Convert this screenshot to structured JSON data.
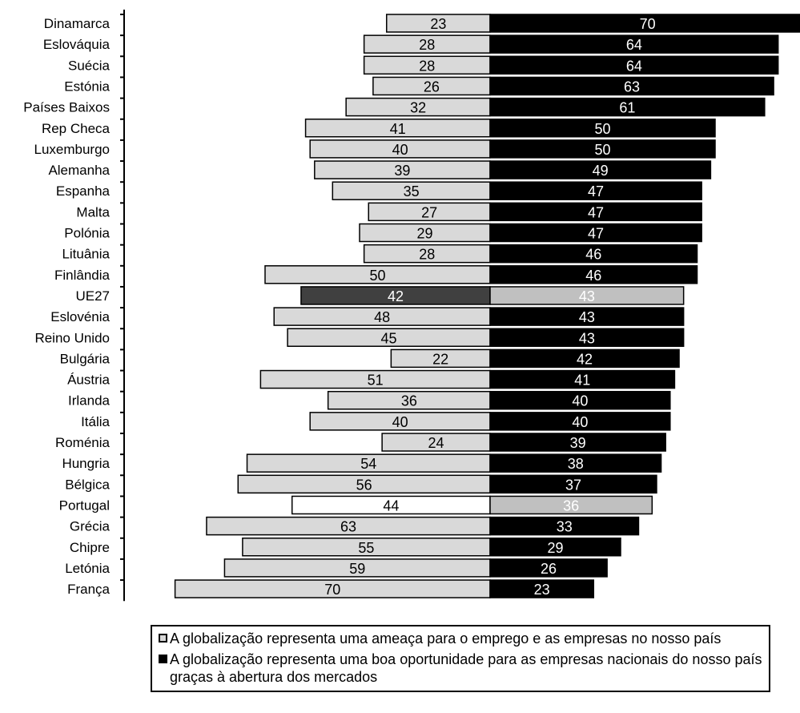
{
  "chart_data": {
    "type": "bar",
    "orientation": "diverging-horizontal",
    "categories": [
      "Dinamarca",
      "Eslováquia",
      "Suécia",
      "Estónia",
      "Países Baixos",
      "Rep Checa",
      "Luxemburgo",
      "Alemanha",
      "Espanha",
      "Malta",
      "Polónia",
      "Lituânia",
      "Finlândia",
      "UE27",
      "Eslovénia",
      "Reino Unido",
      "Bulgária",
      "Áustria",
      "Irlanda",
      "Itália",
      "Roménia",
      "Hungria",
      "Bélgica",
      "Portugal",
      "Grécia",
      "Chipre",
      "Letónia",
      "França"
    ],
    "series": [
      {
        "name": "A globalização representa uma ameaça para o emprego e as empresas no nosso país",
        "color": "#d9d9d9",
        "values": [
          23,
          28,
          28,
          26,
          32,
          41,
          40,
          39,
          35,
          27,
          29,
          28,
          50,
          42,
          48,
          45,
          22,
          51,
          36,
          40,
          24,
          54,
          56,
          44,
          63,
          55,
          59,
          70
        ]
      },
      {
        "name": "A globalização representa uma boa oportunidade para as empresas nacionais do nosso país graças à abertura dos mercados",
        "color": "#000000",
        "values": [
          70,
          64,
          64,
          63,
          61,
          50,
          50,
          49,
          47,
          47,
          47,
          46,
          46,
          43,
          43,
          43,
          42,
          41,
          40,
          40,
          39,
          38,
          37,
          36,
          33,
          29,
          26,
          23
        ]
      }
    ],
    "highlights": {
      "UE27": {
        "left_color": "#404040",
        "right_color": "#c0c0c0"
      },
      "Portugal": {
        "left_color": "#ffffff",
        "right_color": "#c0c0c0"
      }
    },
    "legend_position": "bottom",
    "grid": false
  },
  "legend": {
    "items": [
      {
        "label": "A globalização representa uma ameaça para o emprego e as empresas no nosso país",
        "color": "#d9d9d9"
      },
      {
        "label": "A globalização representa uma boa oportunidade para as empresas nacionais do nosso país graças à abertura dos mercados",
        "color": "#000000"
      }
    ]
  }
}
